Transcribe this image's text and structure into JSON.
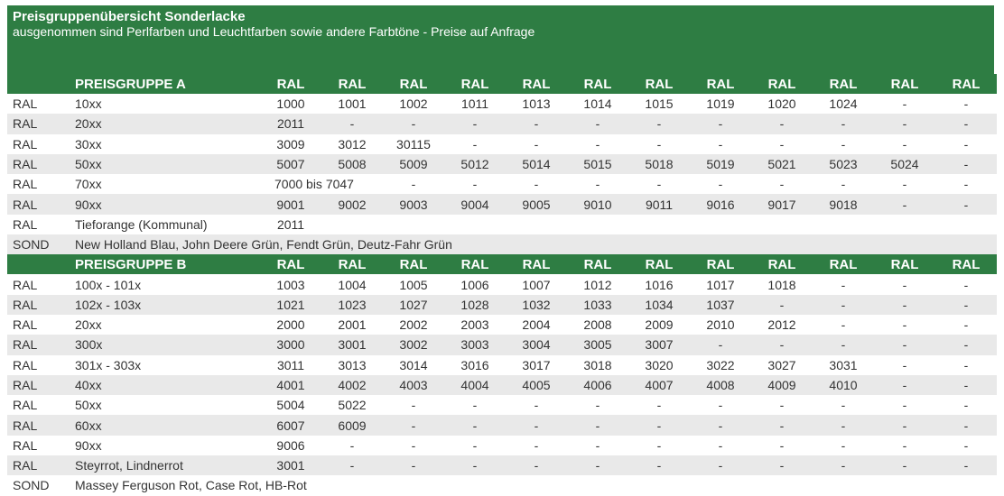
{
  "title": "Preisgruppenübersicht Sonderlacke",
  "subtitle": "ausgenommen sind Perlfarben und Leuchtfarben sowie andere Farbtöne - Preise auf Anfrage",
  "groups": [
    {
      "header": {
        "label": "PREISGRUPPE A",
        "ral_cols": [
          "RAL",
          "RAL",
          "RAL",
          "RAL",
          "RAL",
          "RAL",
          "RAL",
          "RAL",
          "RAL",
          "RAL",
          "RAL",
          "RAL"
        ]
      },
      "rows": [
        {
          "type": "RAL",
          "series": "10xx",
          "values": [
            "1000",
            "1001",
            "1002",
            "1011",
            "1013",
            "1014",
            "1015",
            "1019",
            "1020",
            "1024",
            "-",
            "-"
          ]
        },
        {
          "type": "RAL",
          "series": "20xx",
          "values": [
            "2011",
            "-",
            "-",
            "-",
            "-",
            "-",
            "-",
            "-",
            "-",
            "-",
            "-",
            "-"
          ]
        },
        {
          "type": "RAL",
          "series": "30xx",
          "values": [
            "3009",
            "3012",
            "30115",
            "-",
            "-",
            "-",
            "-",
            "-",
            "-",
            "-",
            "-",
            "-"
          ]
        },
        {
          "type": "RAL",
          "series": "50xx",
          "values": [
            "5007",
            "5008",
            "5009",
            "5012",
            "5014",
            "5015",
            "5018",
            "5019",
            "5021",
            "5023",
            "5024",
            "-"
          ]
        },
        {
          "type": "RAL",
          "series": "70xx",
          "first": "7000 bis 7047",
          "values": [
            "-",
            "-",
            "-",
            "-",
            "-",
            "-",
            "-",
            "-",
            "-",
            "-"
          ]
        },
        {
          "type": "RAL",
          "series": "90xx",
          "values": [
            "9001",
            "9002",
            "9003",
            "9004",
            "9005",
            "9010",
            "9011",
            "9016",
            "9017",
            "9018",
            "-",
            "-"
          ]
        },
        {
          "type": "RAL",
          "series": "Tieforange (Kommunal)",
          "values": [
            "2011",
            "",
            "",
            "",
            "",
            "",
            "",
            "",
            "",
            "",
            "",
            ""
          ]
        },
        {
          "type": "SOND",
          "span": "New Holland Blau, John Deere Grün, Fendt Grün, Deutz-Fahr Grün"
        }
      ]
    },
    {
      "header": {
        "label": "PREISGRUPPE B",
        "ral_cols": [
          "RAL",
          "RAL",
          "RAL",
          "RAL",
          "RAL",
          "RAL",
          "RAL",
          "RAL",
          "RAL",
          "RAL",
          "RAL",
          "RAL"
        ]
      },
      "rows": [
        {
          "type": "RAL",
          "series": "100x - 101x",
          "values": [
            "1003",
            "1004",
            "1005",
            "1006",
            "1007",
            "1012",
            "1016",
            "1017",
            "1018",
            "-",
            "-",
            "-"
          ]
        },
        {
          "type": "RAL",
          "series": "102x - 103x",
          "values": [
            "1021",
            "1023",
            "1027",
            "1028",
            "1032",
            "1033",
            "1034",
            "1037",
            "-",
            "-",
            "-",
            "-"
          ]
        },
        {
          "type": "RAL",
          "series": "20xx",
          "values": [
            "2000",
            "2001",
            "2002",
            "2003",
            "2004",
            "2008",
            "2009",
            "2010",
            "2012",
            "-",
            "-",
            "-"
          ]
        },
        {
          "type": "RAL",
          "series": "300x",
          "values": [
            "3000",
            "3001",
            "3002",
            "3003",
            "3004",
            "3005",
            "3007",
            "-",
            "-",
            "-",
            "-",
            "-"
          ]
        },
        {
          "type": "RAL",
          "series": "301x - 303x",
          "values": [
            "3011",
            "3013",
            "3014",
            "3016",
            "3017",
            "3018",
            "3020",
            "3022",
            "3027",
            "3031",
            "-",
            "-"
          ]
        },
        {
          "type": "RAL",
          "series": "40xx",
          "values": [
            "4001",
            "4002",
            "4003",
            "4004",
            "4005",
            "4006",
            "4007",
            "4008",
            "4009",
            "4010",
            "-",
            "-"
          ]
        },
        {
          "type": "RAL",
          "series": "50xx",
          "values": [
            "5004",
            "5022",
            "-",
            "-",
            "-",
            "-",
            "-",
            "-",
            "-",
            "-",
            "-",
            "-"
          ]
        },
        {
          "type": "RAL",
          "series": "60xx",
          "values": [
            "6007",
            "6009",
            "-",
            "-",
            "-",
            "-",
            "-",
            "-",
            "-",
            "-",
            "-",
            "-"
          ]
        },
        {
          "type": "RAL",
          "series": "90xx",
          "values": [
            "9006",
            "-",
            "-",
            "-",
            "-",
            "-",
            "-",
            "-",
            "-",
            "-",
            "-",
            "-"
          ]
        },
        {
          "type": "RAL",
          "series": "Steyrrot, Lindnerrot",
          "values": [
            "3001",
            "-",
            "-",
            "-",
            "-",
            "-",
            "-",
            "-",
            "-",
            "-",
            "-",
            "-"
          ]
        },
        {
          "type": "SOND",
          "span": "Massey Ferguson Rot, Case Rot, HB-Rot"
        }
      ]
    }
  ]
}
